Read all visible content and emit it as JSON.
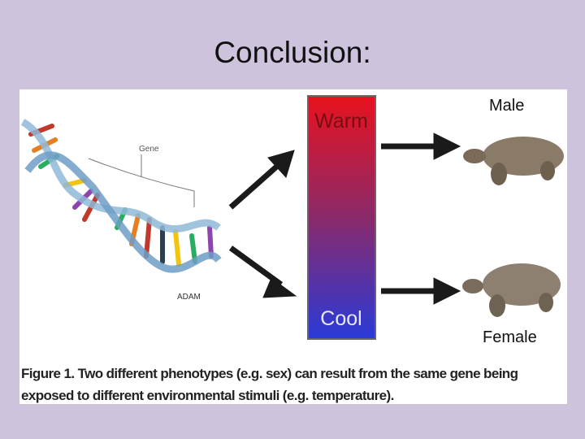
{
  "title": "Conclusion:",
  "figure": {
    "gene_label": "Gene",
    "credit": "ADAM",
    "warm_label": "Warm",
    "cool_label": "Cool",
    "male_label": "Male",
    "female_label": "Female",
    "caption": [
      "Figure 1. Two different phenotypes (e.g. sex) can result from the same gene being",
      "exposed to different environmental stimuli (e.g. temperature)."
    ]
  }
}
